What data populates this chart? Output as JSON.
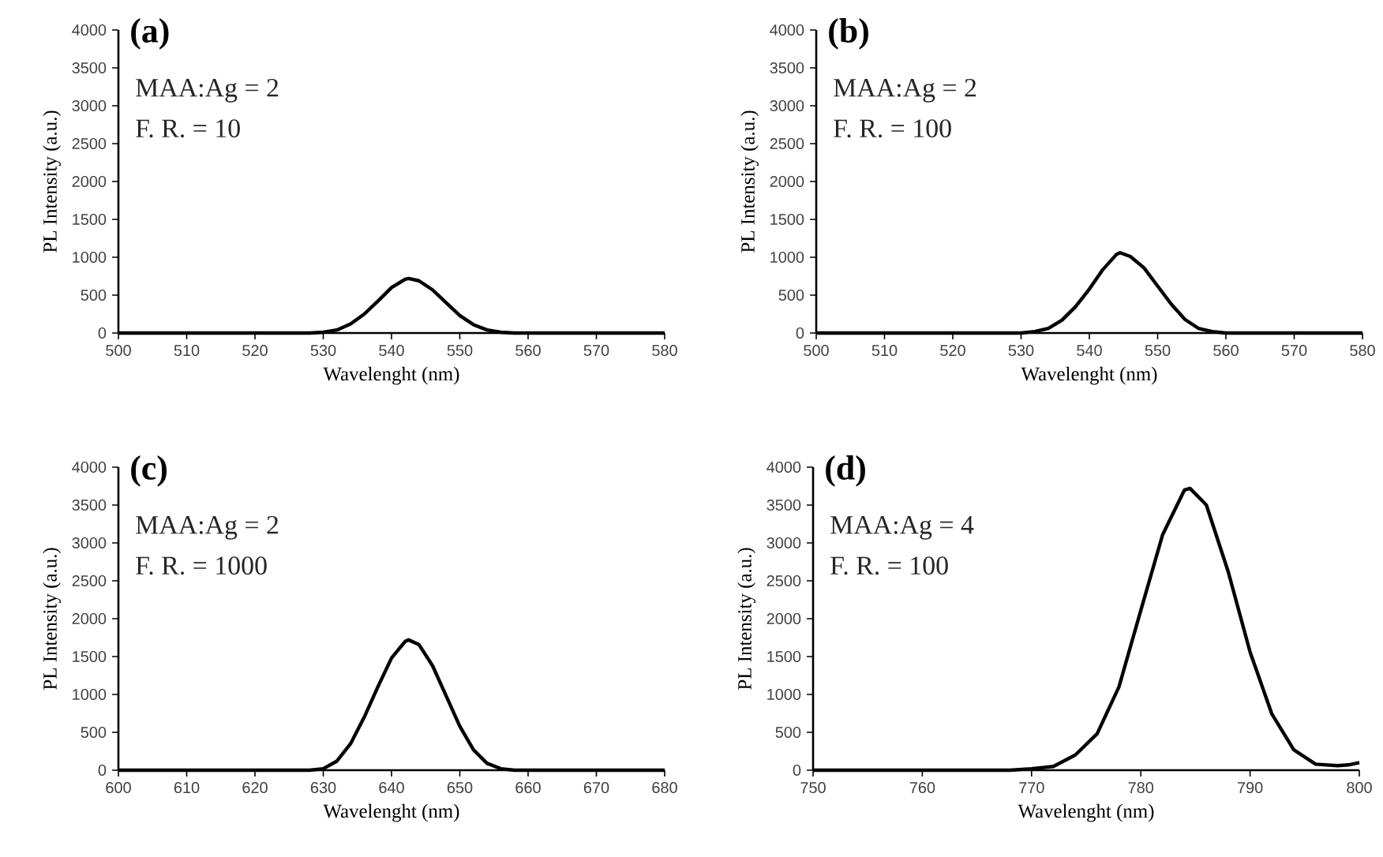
{
  "chart_data": [
    {
      "type": "line",
      "title": "(a)",
      "annotations": [
        "MAA:Ag = 2",
        "F. R. = 10"
      ],
      "xlabel": "Wavelenght (nm)",
      "ylabel": "PL Intensity (a.u.)",
      "x": [
        500,
        520,
        528,
        530,
        532,
        534,
        536,
        538,
        540,
        542,
        542.5,
        544,
        546,
        548,
        550,
        552,
        554,
        556,
        558,
        570,
        580
      ],
      "series": [
        {
          "color": "#000000",
          "values": [
            0,
            0,
            0,
            10,
            40,
            120,
            250,
            420,
            600,
            710,
            720,
            690,
            570,
            400,
            230,
            110,
            40,
            10,
            0,
            0,
            0
          ]
        }
      ],
      "xlim": [
        500,
        580
      ],
      "ylim": [
        0,
        4000
      ],
      "xticks": [
        500,
        510,
        520,
        530,
        540,
        550,
        560,
        570,
        580
      ],
      "yticks": [
        0,
        500,
        1000,
        1500,
        2000,
        2500,
        3000,
        3500,
        4000
      ]
    },
    {
      "type": "line",
      "title": "(b)",
      "annotations": [
        "MAA:Ag = 2",
        "F. R. = 100"
      ],
      "xlabel": "Wavelenght (nm)",
      "ylabel": "PL Intensity (a.u.)",
      "x": [
        500,
        520,
        530,
        532,
        534,
        536,
        538,
        540,
        542,
        544,
        544.5,
        546,
        548,
        550,
        552,
        554,
        556,
        558,
        560,
        570,
        580
      ],
      "series": [
        {
          "color": "#000000",
          "values": [
            0,
            0,
            0,
            20,
            60,
            170,
            350,
            580,
            840,
            1040,
            1060,
            1010,
            860,
            620,
            380,
            180,
            60,
            20,
            0,
            0,
            0
          ]
        }
      ],
      "xlim": [
        500,
        580
      ],
      "ylim": [
        0,
        4000
      ],
      "xticks": [
        500,
        510,
        520,
        530,
        540,
        550,
        560,
        570,
        580
      ],
      "yticks": [
        0,
        500,
        1000,
        1500,
        2000,
        2500,
        3000,
        3500,
        4000
      ]
    },
    {
      "type": "line",
      "title": "(c)",
      "annotations": [
        "MAA:Ag = 2",
        "F. R. = 1000"
      ],
      "xlabel": "Wavelenght (nm)",
      "ylabel": "PL Intensity (a.u.)",
      "x": [
        600,
        620,
        628,
        630,
        632,
        634,
        636,
        638,
        640,
        642,
        642.5,
        644,
        646,
        648,
        650,
        652,
        654,
        656,
        658,
        670,
        680
      ],
      "series": [
        {
          "color": "#000000",
          "values": [
            0,
            0,
            0,
            20,
            120,
            350,
            700,
            1100,
            1480,
            1700,
            1720,
            1660,
            1380,
            980,
            580,
            270,
            90,
            20,
            0,
            0,
            0
          ]
        }
      ],
      "xlim": [
        600,
        680
      ],
      "ylim": [
        0,
        4000
      ],
      "xticks": [
        600,
        610,
        620,
        630,
        640,
        650,
        660,
        670,
        680
      ],
      "yticks": [
        0,
        500,
        1000,
        1500,
        2000,
        2500,
        3000,
        3500,
        4000
      ]
    },
    {
      "type": "line",
      "title": "(d)",
      "annotations": [
        "MAA:Ag = 4",
        "F. R. = 100"
      ],
      "xlabel": "Wavelenght (nm)",
      "ylabel": "PL Intensity (a.u.)",
      "x": [
        750,
        760,
        768,
        770,
        772,
        774,
        776,
        778,
        780,
        782,
        784,
        784.5,
        786,
        788,
        790,
        792,
        794,
        796,
        798,
        799,
        800
      ],
      "series": [
        {
          "color": "#000000",
          "values": [
            0,
            0,
            0,
            20,
            50,
            200,
            480,
            1100,
            2110,
            3110,
            3700,
            3720,
            3500,
            2620,
            1560,
            740,
            270,
            80,
            60,
            70,
            100
          ]
        }
      ],
      "xlim": [
        750,
        800
      ],
      "ylim": [
        0,
        4000
      ],
      "xticks": [
        750,
        760,
        770,
        780,
        790,
        800
      ],
      "yticks": [
        0,
        500,
        1000,
        1500,
        2000,
        2500,
        3000,
        3500,
        4000
      ]
    }
  ]
}
